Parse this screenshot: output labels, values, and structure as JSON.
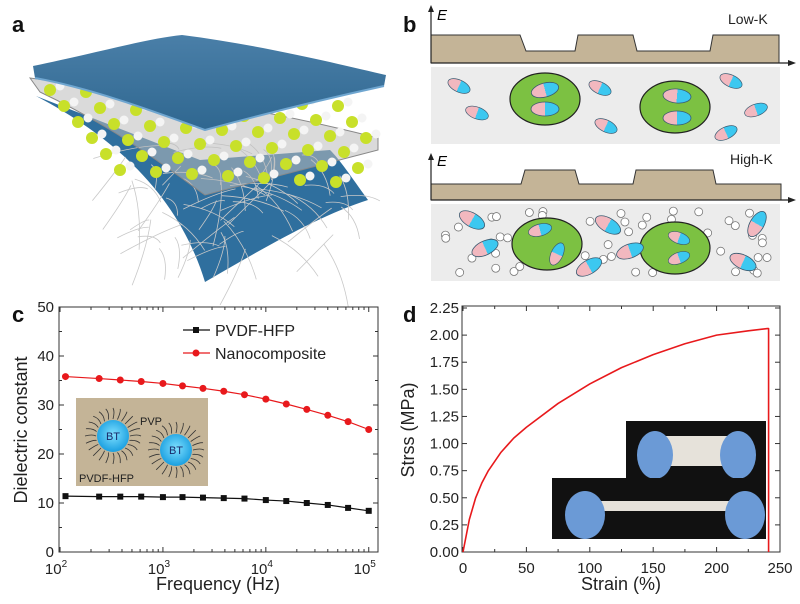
{
  "panels": {
    "a": {
      "label": "a"
    },
    "b": {
      "label": "b",
      "top": {
        "axis_label": "E",
        "title": "Low-K"
      },
      "bottom": {
        "axis_label": "E",
        "title": "High-K"
      }
    },
    "c": {
      "label": "c",
      "inset": {
        "particle_label_1": "BT",
        "particle_label_2": "BT",
        "shell_label": "PVP",
        "matrix_label": "PVDF-HFP"
      }
    },
    "d": {
      "label": "d"
    }
  },
  "colors": {
    "substrate_blue": "#3f7fae",
    "particle_green": "#c8e02a",
    "energy_tan": "#c4b497",
    "grain_green": "#7cc142",
    "dipole_pink": "#f2b8bf",
    "dipole_cyan": "#3cc8f0",
    "red_series": "#e8191c",
    "black_series": "#111111"
  },
  "chart_data": [
    {
      "panel": "c",
      "type": "line",
      "xlabel": "Frequency (Hz)",
      "ylabel": "Dielectric constant",
      "xscale": "log",
      "xlim": [
        100,
        100000
      ],
      "ylim": [
        0,
        50
      ],
      "x_ticks": [
        "10^2",
        "10^3",
        "10^4",
        "10^5"
      ],
      "y_ticks": [
        "0",
        "10",
        "20",
        "30",
        "40",
        "50"
      ],
      "legend_position": "top-right",
      "x": [
        113,
        240,
        385,
        615,
        1000,
        1550,
        2450,
        3900,
        6200,
        10000,
        15800,
        25000,
        40000,
        63000,
        100000
      ],
      "series": [
        {
          "name": "PVDF-HFP",
          "marker": "square",
          "color": "#111111",
          "values": [
            11.4,
            11.3,
            11.3,
            11.3,
            11.2,
            11.2,
            11.1,
            11.0,
            10.9,
            10.6,
            10.4,
            10.0,
            9.6,
            9.0,
            8.4
          ]
        },
        {
          "name": "Nanocomposite",
          "marker": "circle",
          "color": "#e8191c",
          "values": [
            35.8,
            35.4,
            35.1,
            34.8,
            34.4,
            33.9,
            33.4,
            32.8,
            32.1,
            31.2,
            30.2,
            29.1,
            27.9,
            26.6,
            25.0
          ]
        }
      ]
    },
    {
      "panel": "d",
      "type": "line",
      "xlabel": "Strain (%)",
      "ylabel": "Strss (MPa)",
      "xlim": [
        0,
        250
      ],
      "ylim": [
        0,
        2.25
      ],
      "x_ticks": [
        "0",
        "50",
        "100",
        "150",
        "200",
        "250"
      ],
      "y_ticks": [
        "0.00",
        "0.25",
        "0.50",
        "0.75",
        "1.00",
        "1.25",
        "1.50",
        "1.75",
        "2.00",
        "2.25"
      ],
      "series": [
        {
          "color": "#e8191c",
          "x": [
            0,
            2,
            5,
            10,
            15,
            20,
            30,
            40,
            50,
            75,
            100,
            125,
            150,
            175,
            200,
            225,
            240,
            241,
            241
          ],
          "values": [
            0,
            0.12,
            0.3,
            0.5,
            0.64,
            0.75,
            0.92,
            1.05,
            1.15,
            1.37,
            1.55,
            1.7,
            1.82,
            1.92,
            2.0,
            2.04,
            2.06,
            2.06,
            0
          ]
        }
      ]
    }
  ]
}
